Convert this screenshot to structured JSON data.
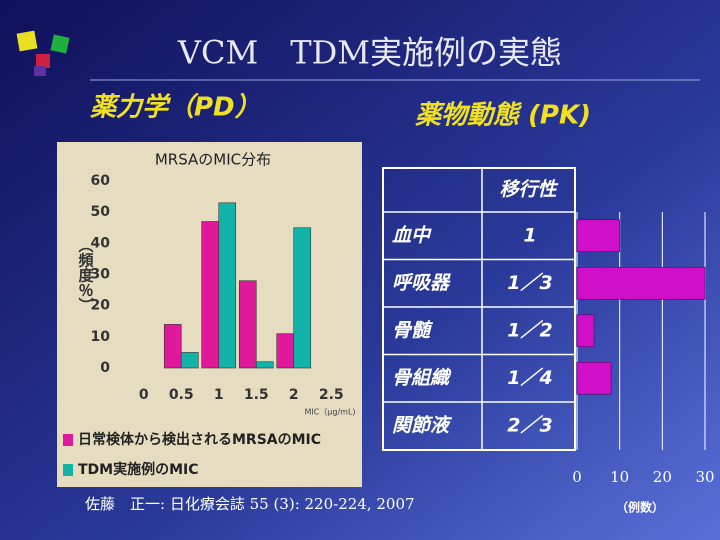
{
  "title": "VCM　TDM実施例の実態",
  "subtitles": [
    "薬力学（PD）",
    "薬物動態 (PK)"
  ],
  "citation": "佐藤　正一: 日化療会誌 55 (3): 220-224, 2007",
  "table": {
    "header": "移行性",
    "rows": [
      [
        "血中",
        "1"
      ],
      [
        "呼吸器",
        "1／3"
      ],
      [
        "骨髄",
        "1／2"
      ],
      [
        "骨組織",
        "1／4"
      ],
      [
        "関節液",
        "2／3"
      ]
    ]
  },
  "chart_data": [
    {
      "type": "bar",
      "title": "MRSAのMIC分布",
      "y_label": "（頻度％）",
      "x_label": "MIC（μg/mL)",
      "x": [
        0.5,
        1,
        1.5,
        2
      ],
      "series": [
        {
          "name": "日常検体から検出されるMRSAのMIC",
          "color": "#e0189a",
          "values": [
            14,
            47,
            28,
            11
          ]
        },
        {
          "name": "TDM実施例のMIC",
          "color": "#12b4aa",
          "values": [
            5,
            53,
            2,
            45
          ]
        }
      ],
      "xlim": [
        -0.25,
        2.75
      ],
      "xticks": [
        0,
        0.5,
        1,
        1.5,
        2,
        2.5
      ],
      "ylim": [
        0,
        60
      ],
      "yticks": [
        0,
        10,
        20,
        30,
        40,
        50,
        60
      ]
    },
    {
      "type": "hbar",
      "x_label": "（例数）",
      "color": "#d010c8",
      "values": [
        10,
        30,
        4,
        8,
        0
      ],
      "xlim": [
        0,
        30
      ],
      "xticks": [
        0,
        10,
        20,
        30
      ],
      "grid": true
    }
  ]
}
